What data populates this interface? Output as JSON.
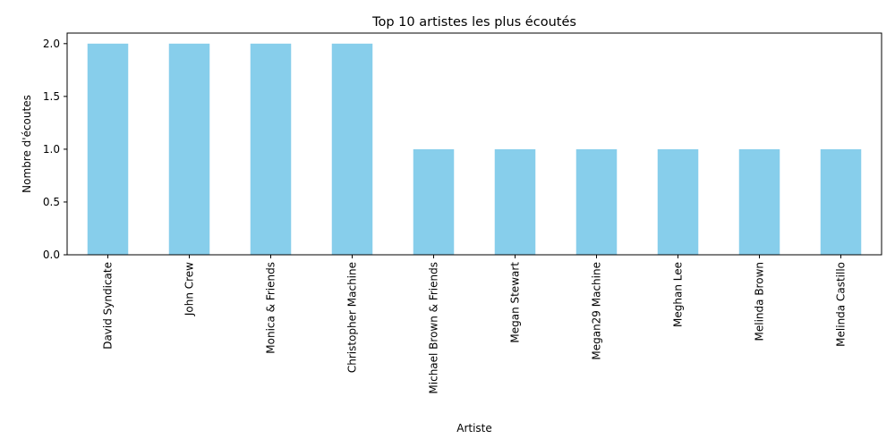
{
  "chart_data": {
    "type": "bar",
    "title": "Top 10 artistes les plus écoutés",
    "xlabel": "Artiste",
    "ylabel": "Nombre d'écoutes",
    "categories": [
      "David Syndicate",
      "John Crew",
      "Monica & Friends",
      "Christopher Machine",
      "Michael Brown & Friends",
      "Megan Stewart",
      "Megan29 Machine",
      "Meghan Lee",
      "Melinda Brown",
      "Melinda Castillo"
    ],
    "values": [
      2,
      2,
      2,
      2,
      1,
      1,
      1,
      1,
      1,
      1
    ],
    "ylim": [
      0,
      2.1
    ],
    "yticks": [
      "0.0",
      "0.5",
      "1.0",
      "1.5",
      "2.0"
    ],
    "bar_color": "#87ceeb",
    "grid": false,
    "legend": false
  }
}
